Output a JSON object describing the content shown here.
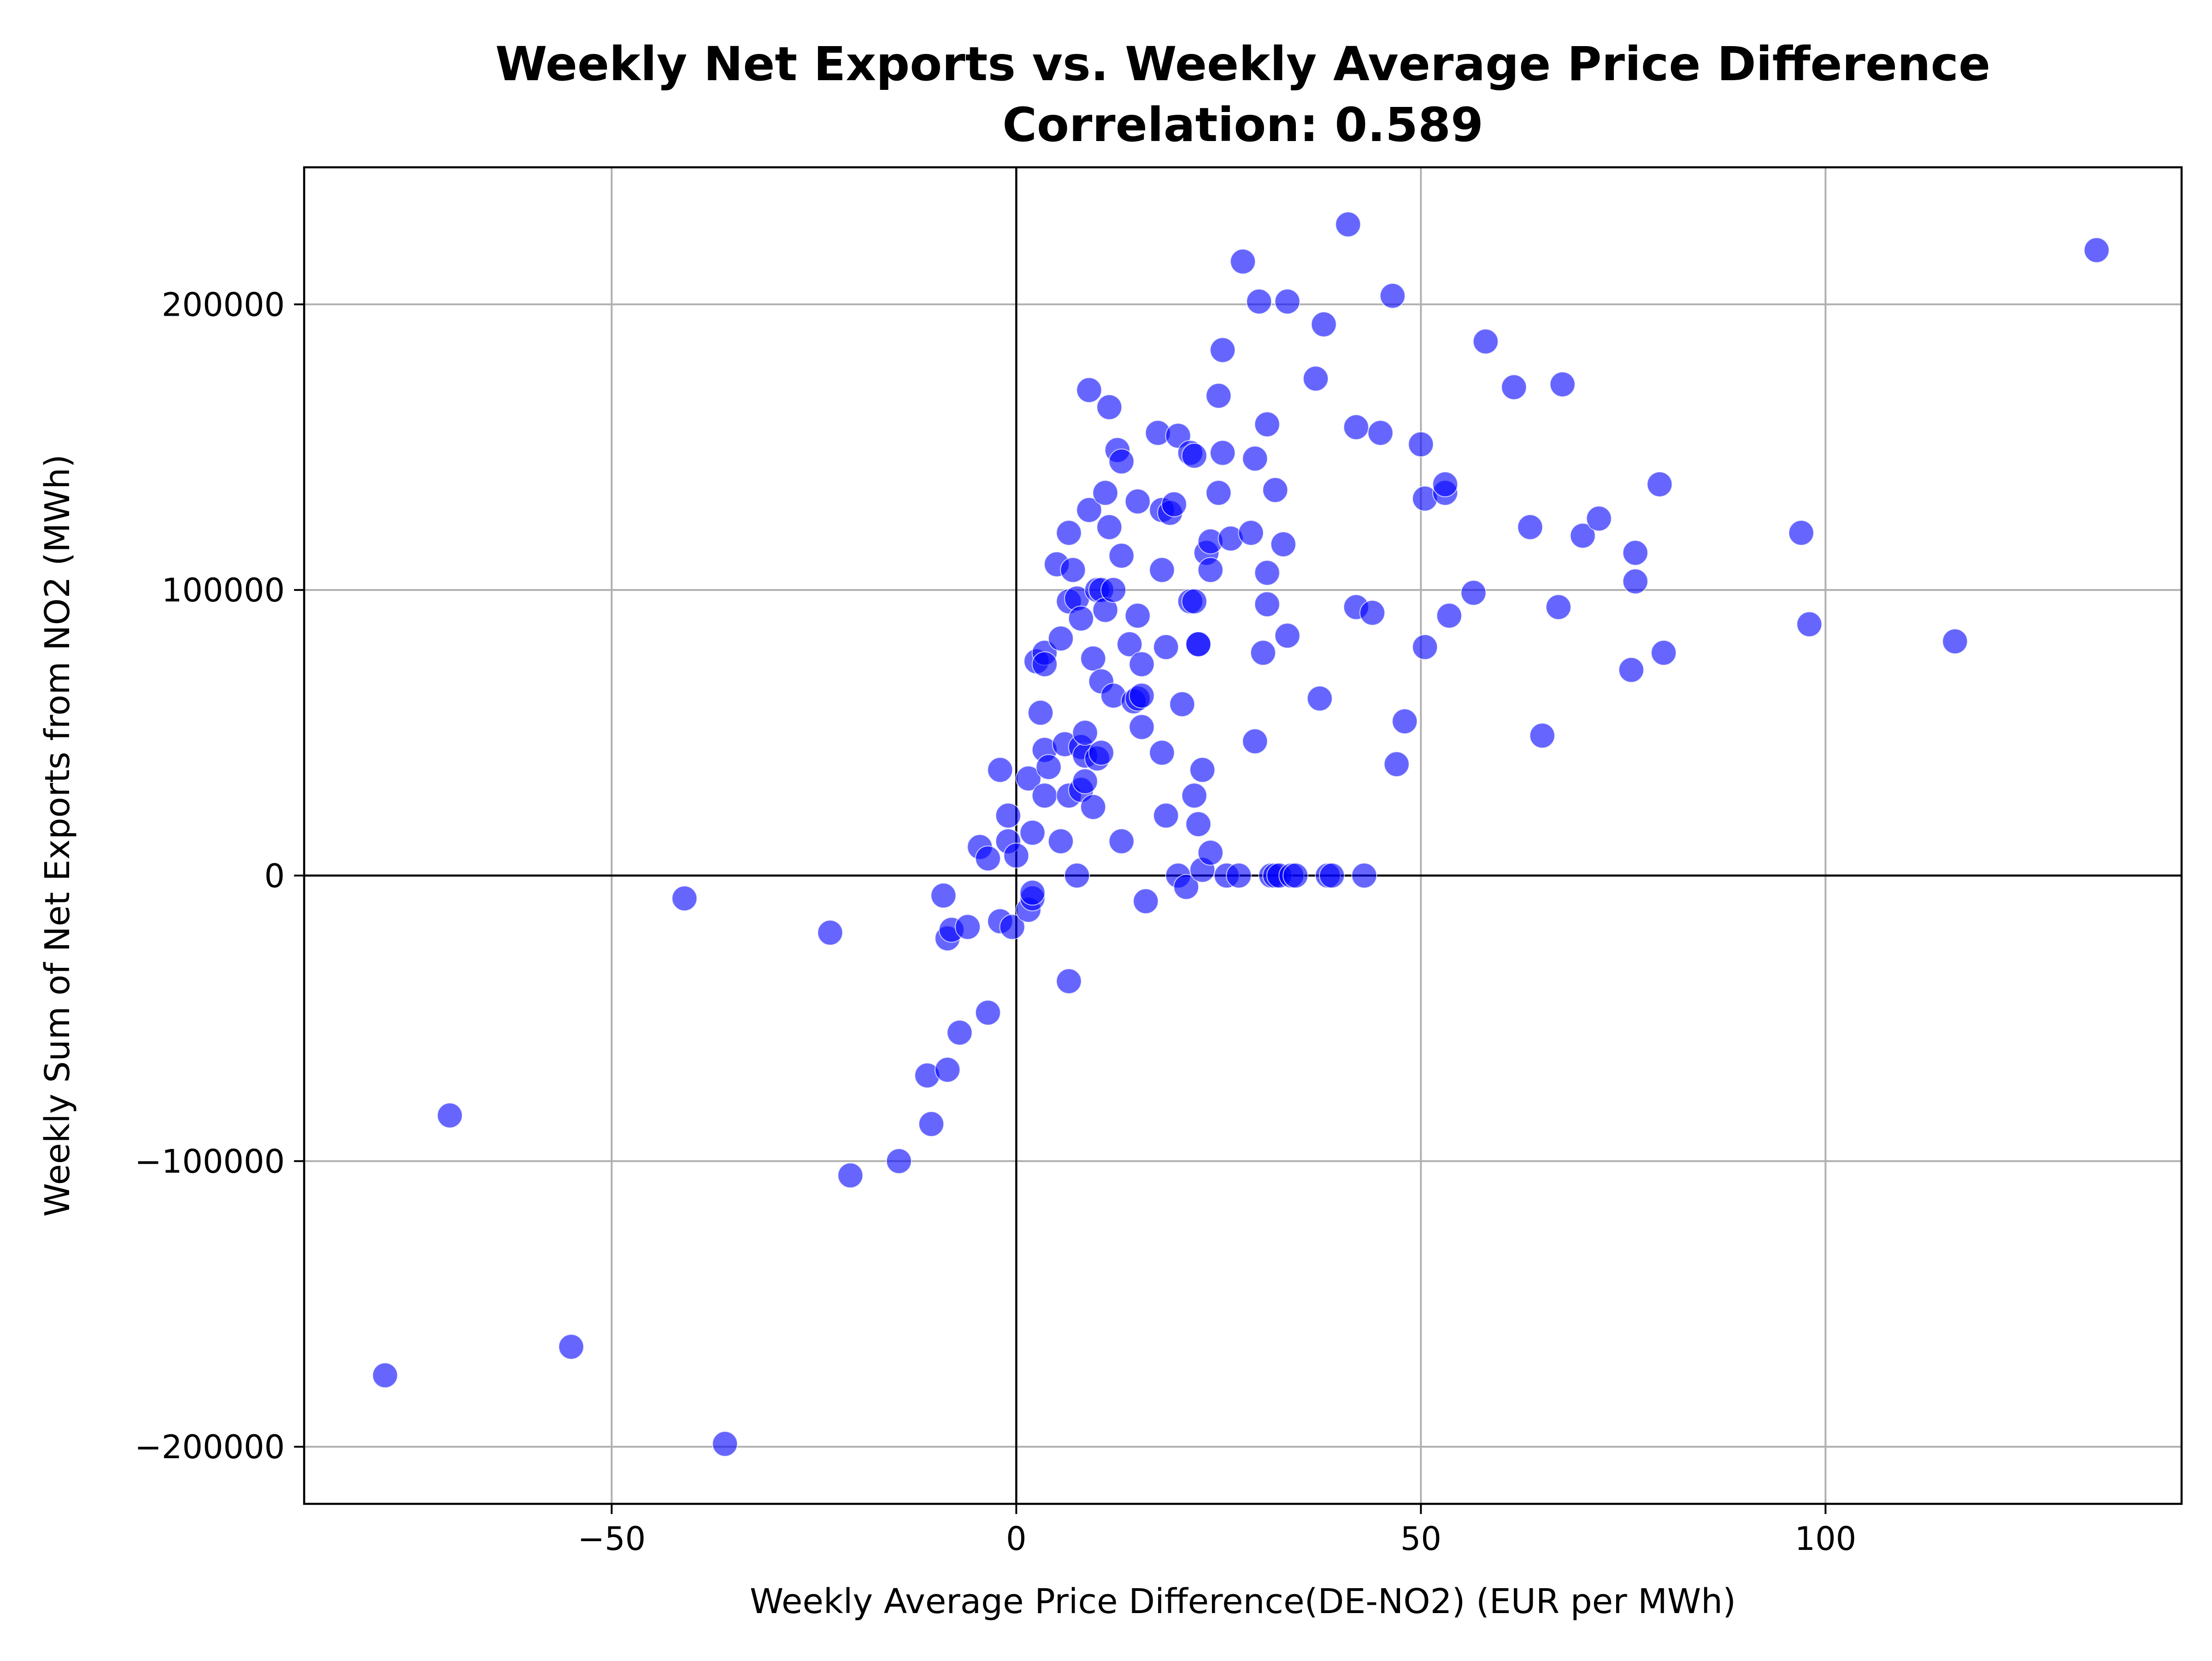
{
  "chart_data": {
    "type": "scatter",
    "title": "Weekly Net Exports vs. Weekly Average Price Difference",
    "subtitle": "Correlation: 0.589",
    "xlabel": "Weekly Average Price Difference(DE-NO2) (EUR per MWh)",
    "ylabel": "Weekly Sum of Net Exports from NO2 (MWh)",
    "xlim": [
      -88,
      144
    ],
    "ylim": [
      -220000,
      248000
    ],
    "xticks": [
      -50,
      0,
      50,
      100
    ],
    "yticks": [
      -200000,
      -100000,
      0,
      100000,
      200000
    ],
    "xtick_labels": [
      "−50",
      "0",
      "50",
      "100"
    ],
    "ytick_labels": [
      "−200000",
      "−100000",
      "0",
      "100000",
      "200000"
    ],
    "grid": true,
    "reference_lines": {
      "x": 0,
      "y": 0
    },
    "colors": {
      "point": "#0000ff"
    },
    "points": [
      [
        -78,
        -175000
      ],
      [
        -70,
        -84000
      ],
      [
        -55,
        -165000
      ],
      [
        -41,
        -8000
      ],
      [
        -36,
        -199000
      ],
      [
        -23,
        -20000
      ],
      [
        -20.5,
        -105000
      ],
      [
        -14.5,
        -100000
      ],
      [
        -11,
        -70000
      ],
      [
        -10.5,
        -87000
      ],
      [
        -9,
        -7000
      ],
      [
        -8.5,
        -22000
      ],
      [
        -8,
        -19000
      ],
      [
        -8.5,
        -68000
      ],
      [
        -7,
        -55000
      ],
      [
        -6,
        -18000
      ],
      [
        -4.5,
        10000
      ],
      [
        -3.5,
        6000
      ],
      [
        -3.5,
        -48000
      ],
      [
        -2,
        37000
      ],
      [
        -2,
        -16000
      ],
      [
        -1,
        21000
      ],
      [
        -1,
        12000
      ],
      [
        -0.5,
        -18000
      ],
      [
        0,
        7000
      ],
      [
        1.5,
        -12000
      ],
      [
        2,
        -8000
      ],
      [
        2,
        -6000
      ],
      [
        1.5,
        34000
      ],
      [
        2,
        15000
      ],
      [
        2.5,
        75000
      ],
      [
        3,
        57000
      ],
      [
        3.5,
        44000
      ],
      [
        3.5,
        28000
      ],
      [
        3.5,
        78000
      ],
      [
        3.5,
        74000
      ],
      [
        4,
        38000
      ],
      [
        5,
        109000
      ],
      [
        5.5,
        83000
      ],
      [
        5.5,
        12000
      ],
      [
        6,
        46000
      ],
      [
        6.5,
        120000
      ],
      [
        6.5,
        96000
      ],
      [
        6.5,
        28000
      ],
      [
        6.5,
        -37000
      ],
      [
        7,
        107000
      ],
      [
        7.5,
        97000
      ],
      [
        7.5,
        0
      ],
      [
        8,
        90000
      ],
      [
        8,
        45000
      ],
      [
        8,
        30000
      ],
      [
        8.5,
        42000
      ],
      [
        8.5,
        33000
      ],
      [
        8.5,
        50000
      ],
      [
        9,
        128000
      ],
      [
        9,
        170000
      ],
      [
        9.5,
        76000
      ],
      [
        9.5,
        24000
      ],
      [
        10,
        100000
      ],
      [
        10,
        41000
      ],
      [
        10.5,
        100000
      ],
      [
        10.5,
        68000
      ],
      [
        10.5,
        43000
      ],
      [
        11,
        134000
      ],
      [
        11,
        93000
      ],
      [
        11.5,
        164000
      ],
      [
        11.5,
        122000
      ],
      [
        12,
        100000
      ],
      [
        12,
        63000
      ],
      [
        12.5,
        149000
      ],
      [
        13,
        12000
      ],
      [
        13,
        112000
      ],
      [
        13,
        145000
      ],
      [
        14,
        81000
      ],
      [
        14.5,
        61000
      ],
      [
        15,
        131000
      ],
      [
        15,
        91000
      ],
      [
        15,
        62000
      ],
      [
        15.5,
        52000
      ],
      [
        15.5,
        74000
      ],
      [
        15.5,
        63000
      ],
      [
        16,
        -9000
      ],
      [
        17.5,
        155000
      ],
      [
        18,
        128000
      ],
      [
        18,
        107000
      ],
      [
        18,
        43000
      ],
      [
        18.5,
        80000
      ],
      [
        18.5,
        21000
      ],
      [
        19,
        127000
      ],
      [
        19.5,
        130000
      ],
      [
        20,
        0
      ],
      [
        20,
        154000
      ],
      [
        20.5,
        60000
      ],
      [
        21,
        -4000
      ],
      [
        21.5,
        96000
      ],
      [
        21.5,
        148000
      ],
      [
        22,
        147000
      ],
      [
        22,
        96000
      ],
      [
        22,
        28000
      ],
      [
        22.5,
        81000
      ],
      [
        22.5,
        81000
      ],
      [
        22.5,
        18000
      ],
      [
        23,
        2000
      ],
      [
        23,
        37000
      ],
      [
        23.5,
        113000
      ],
      [
        24,
        117000
      ],
      [
        24,
        107000
      ],
      [
        24,
        8000
      ],
      [
        25,
        168000
      ],
      [
        25,
        134000
      ],
      [
        25.5,
        184000
      ],
      [
        25.5,
        148000
      ],
      [
        26,
        0
      ],
      [
        26.5,
        118000
      ],
      [
        27.5,
        0
      ],
      [
        28,
        215000
      ],
      [
        29,
        120000
      ],
      [
        29.5,
        146000
      ],
      [
        29.5,
        47000
      ],
      [
        30,
        201000
      ],
      [
        30.5,
        78000
      ],
      [
        31,
        158000
      ],
      [
        31,
        95000
      ],
      [
        31,
        106000
      ],
      [
        31.5,
        0
      ],
      [
        32,
        0
      ],
      [
        32,
        135000
      ],
      [
        32.5,
        0
      ],
      [
        33,
        116000
      ],
      [
        33.5,
        84000
      ],
      [
        33.5,
        201000
      ],
      [
        34,
        0
      ],
      [
        34.5,
        0
      ],
      [
        37,
        174000
      ],
      [
        37.5,
        62000
      ],
      [
        38,
        193000
      ],
      [
        38.5,
        0
      ],
      [
        39,
        0
      ],
      [
        41,
        228000
      ],
      [
        42,
        157000
      ],
      [
        42,
        94000
      ],
      [
        43,
        0
      ],
      [
        44,
        92000
      ],
      [
        45,
        155000
      ],
      [
        46.5,
        203000
      ],
      [
        47,
        39000
      ],
      [
        48,
        54000
      ],
      [
        50,
        151000
      ],
      [
        50.5,
        132000
      ],
      [
        50.5,
        80000
      ],
      [
        53,
        134000
      ],
      [
        53,
        137000
      ],
      [
        53.5,
        91000
      ],
      [
        56.5,
        99000
      ],
      [
        58,
        187000
      ],
      [
        61.5,
        171000
      ],
      [
        63.5,
        122000
      ],
      [
        65,
        49000
      ],
      [
        67,
        94000
      ],
      [
        67.5,
        172000
      ],
      [
        70,
        119000
      ],
      [
        72,
        125000
      ],
      [
        76,
        72000
      ],
      [
        76.5,
        103000
      ],
      [
        76.5,
        113000
      ],
      [
        79.5,
        137000
      ],
      [
        80,
        78000
      ],
      [
        97,
        120000
      ],
      [
        98,
        88000
      ],
      [
        116,
        82000
      ],
      [
        133.5,
        219000
      ]
    ]
  }
}
